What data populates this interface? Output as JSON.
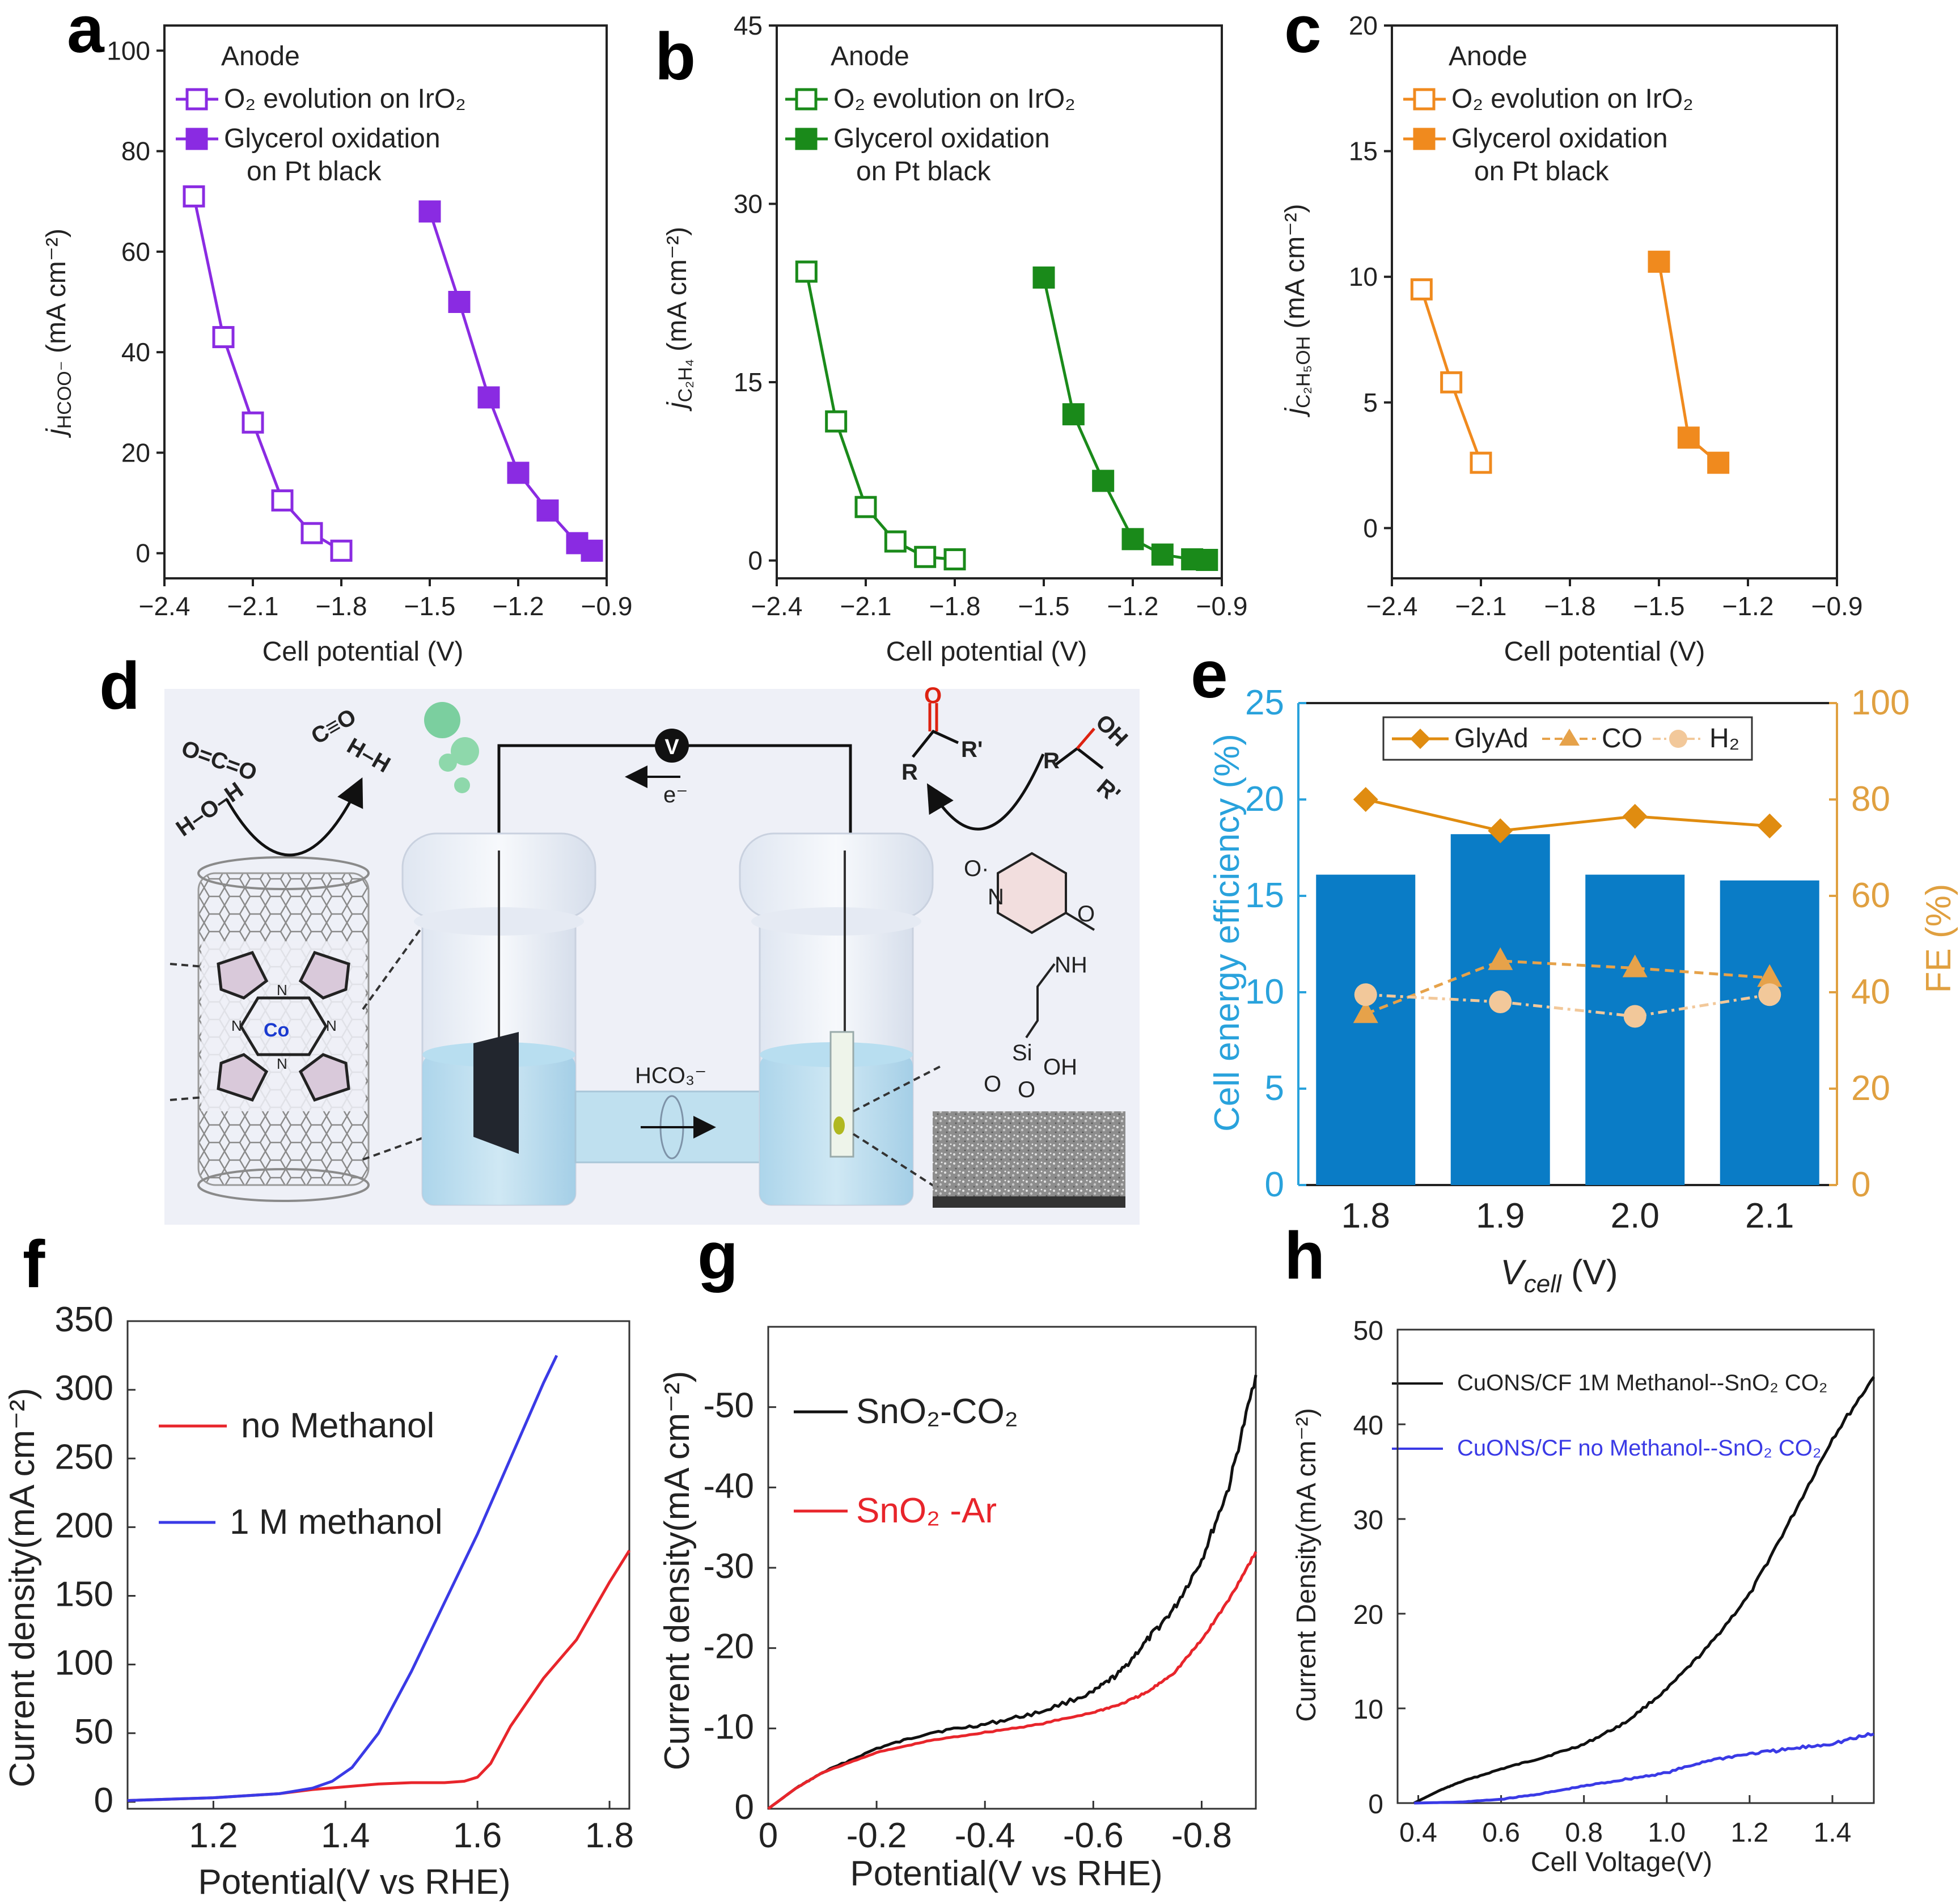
{
  "figure": {
    "panel_labels": [
      "a",
      "b",
      "c",
      "d",
      "e",
      "f",
      "g",
      "h"
    ]
  },
  "colors": {
    "purple": "#8a2be2",
    "green": "#1a8a1a",
    "orange": "#f08a1e",
    "blue_bar": "#0a7cc6",
    "fe_line": "#e08c10",
    "fe_triangle": "#e6a24a",
    "fe_circle": "#f2c89a",
    "red": "#e8252b",
    "blue": "#3a3ae6",
    "black": "#111111",
    "axis_blue": "#29a2dc",
    "axis_orange": "#e0a040"
  },
  "chart_data": [
    {
      "panel": "a",
      "type": "line",
      "xlabel": "Cell potential (V)",
      "ylabel": "j_HCOO- (mA cm^-2)",
      "xlim": [
        -2.4,
        -0.9
      ],
      "ylim": [
        -5,
        105
      ],
      "xticks": [
        -2.4,
        -2.1,
        -1.8,
        -1.5,
        -1.2,
        -0.9
      ],
      "xtick_labels": [
        "−2.4",
        "−2.1",
        "−1.8",
        "−1.5",
        "−1.2",
        "−0.9"
      ],
      "yticks": [
        0,
        20,
        40,
        60,
        80,
        100
      ],
      "ytick_labels": [
        "0",
        "20",
        "40",
        "60",
        "80",
        "100"
      ],
      "legend_title": "Anode",
      "series": [
        {
          "name": "O2 evolution on IrO2",
          "marker": "open-square",
          "x": [
            -2.3,
            -2.2,
            -2.1,
            -2.0,
            -1.9,
            -1.8
          ],
          "y": [
            71,
            43,
            26,
            10.5,
            4,
            0.5
          ]
        },
        {
          "name": "Glycerol oxidation on Pt black",
          "marker": "filled-square",
          "x": [
            -1.5,
            -1.4,
            -1.3,
            -1.2,
            -1.1,
            -1.0,
            -0.95
          ],
          "y": [
            68,
            50,
            31,
            16,
            8.5,
            2,
            0.5
          ]
        }
      ]
    },
    {
      "panel": "b",
      "type": "line",
      "xlabel": "Cell potential (V)",
      "ylabel": "j_C2H4 (mA cm^-2)",
      "xlim": [
        -2.4,
        -0.9
      ],
      "ylim": [
        -1.5,
        45
      ],
      "xticks": [
        -2.4,
        -2.1,
        -1.8,
        -1.5,
        -1.2,
        -0.9
      ],
      "xtick_labels": [
        "−2.4",
        "−2.1",
        "−1.8",
        "−1.5",
        "−1.2",
        "−0.9"
      ],
      "yticks": [
        0,
        15,
        30,
        45
      ],
      "ytick_labels": [
        "0",
        "15",
        "30",
        "45"
      ],
      "legend_title": "Anode",
      "series": [
        {
          "name": "O2 evolution on IrO2",
          "marker": "open-square",
          "x": [
            -2.3,
            -2.2,
            -2.1,
            -2.0,
            -1.9,
            -1.8
          ],
          "y": [
            24.3,
            11.7,
            4.5,
            1.6,
            0.3,
            0.1
          ]
        },
        {
          "name": "Glycerol oxidation on Pt black",
          "marker": "filled-square",
          "x": [
            -1.5,
            -1.4,
            -1.3,
            -1.2,
            -1.1,
            -1.0,
            -0.95
          ],
          "y": [
            23.8,
            12.3,
            6.7,
            1.8,
            0.5,
            0.1,
            0.05
          ]
        }
      ]
    },
    {
      "panel": "c",
      "type": "line",
      "xlabel": "Cell potential (V)",
      "ylabel": "j_C2H5OH (mA cm^-2)",
      "xlim": [
        -2.4,
        -0.9
      ],
      "ylim": [
        -2,
        20
      ],
      "xticks": [
        -2.4,
        -2.1,
        -1.8,
        -1.5,
        -1.2,
        -0.9
      ],
      "xtick_labels": [
        "−2.4",
        "−2.1",
        "−1.8",
        "−1.5",
        "−1.2",
        "−0.9"
      ],
      "yticks": [
        0,
        5,
        10,
        15,
        20
      ],
      "ytick_labels": [
        "0",
        "5",
        "10",
        "15",
        "20"
      ],
      "legend_title": "Anode",
      "series": [
        {
          "name": "O2 evolution on IrO2",
          "marker": "open-square",
          "x": [
            -2.3,
            -2.2,
            -2.1
          ],
          "y": [
            9.5,
            5.8,
            2.6
          ]
        },
        {
          "name": "Glycerol oxidation on Pt black",
          "marker": "filled-square",
          "x": [
            -1.5,
            -1.4,
            -1.3
          ],
          "y": [
            10.6,
            3.6,
            2.6
          ]
        }
      ]
    },
    {
      "panel": "e",
      "type": "bar",
      "xlabel": "V_cell (V)",
      "ylabel": "Cell energy efficiency (%)",
      "y2label": "FE (%)",
      "categories": [
        "1.8",
        "1.9",
        "2.0",
        "2.1"
      ],
      "ylim": [
        0,
        25
      ],
      "y2lim": [
        0,
        100
      ],
      "yticks": [
        0,
        5,
        10,
        15,
        20,
        25
      ],
      "y2ticks": [
        0,
        20,
        40,
        60,
        80,
        100
      ],
      "values": [
        16.1,
        18.2,
        16.1,
        15.8
      ],
      "series": [
        {
          "name": "GlyAd",
          "axis": "right",
          "marker": "diamond",
          "values": [
            80,
            73.5,
            76.5,
            74.5
          ]
        },
        {
          "name": "CO",
          "axis": "right",
          "marker": "triangle",
          "values": [
            35.5,
            46.5,
            45,
            43
          ]
        },
        {
          "name": "H2",
          "axis": "right",
          "marker": "circle",
          "values": [
            39.5,
            38,
            35,
            39.5
          ]
        }
      ]
    },
    {
      "panel": "f",
      "type": "line",
      "xlabel": "Potential(V vs RHE)",
      "ylabel": "Current density(mA cm⁻²)",
      "xlim": [
        1.07,
        1.83
      ],
      "ylim": [
        -5,
        350
      ],
      "xticks": [
        1.2,
        1.4,
        1.6,
        1.8
      ],
      "xtick_labels": [
        "1.2",
        "1.4",
        "1.6",
        "1.8"
      ],
      "yticks": [
        0,
        50,
        100,
        150,
        200,
        250,
        300,
        350
      ],
      "ytick_labels": [
        "0",
        "50",
        "100",
        "150",
        "200",
        "250",
        "300",
        "350"
      ],
      "series": [
        {
          "name": "no Methanol",
          "x": [
            1.07,
            1.2,
            1.3,
            1.35,
            1.4,
            1.45,
            1.5,
            1.55,
            1.58,
            1.6,
            1.62,
            1.65,
            1.7,
            1.75,
            1.8,
            1.83
          ],
          "y": [
            1,
            3,
            6,
            9,
            11,
            13,
            14,
            14,
            15,
            18,
            28,
            55,
            90,
            118,
            160,
            183
          ]
        },
        {
          "name": "1 M methanol",
          "x": [
            1.07,
            1.2,
            1.3,
            1.35,
            1.38,
            1.41,
            1.45,
            1.5,
            1.55,
            1.6,
            1.65,
            1.7,
            1.72
          ],
          "y": [
            1,
            3,
            6,
            10,
            15,
            25,
            50,
            95,
            145,
            195,
            250,
            305,
            325
          ]
        }
      ]
    },
    {
      "panel": "g",
      "type": "line",
      "xlabel": "Potential(V vs RHE)",
      "ylabel": "Current density(mA cm⁻²)",
      "xlim": [
        0.0,
        -0.9
      ],
      "ylim": [
        0,
        -60
      ],
      "xticks": [
        0,
        -0.2,
        -0.4,
        -0.6,
        -0.8
      ],
      "xtick_labels": [
        "0",
        "-0.2",
        "-0.4",
        "-0.6",
        "-0.8"
      ],
      "yticks": [
        0,
        -10,
        -20,
        -30,
        -40,
        -50
      ],
      "ytick_labels": [
        "0",
        "-10",
        "-20",
        "-30",
        "-40",
        "-50"
      ],
      "series": [
        {
          "name": "SnO2-CO2",
          "x": [
            0.0,
            -0.05,
            -0.1,
            -0.2,
            -0.3,
            -0.4,
            -0.5,
            -0.6,
            -0.65,
            -0.7,
            -0.75,
            -0.8,
            -0.85,
            -0.9
          ],
          "y": [
            0,
            -2.5,
            -4.5,
            -7.5,
            -9.5,
            -10.5,
            -12,
            -14.5,
            -17,
            -21,
            -25,
            -31,
            -40,
            -54
          ]
        },
        {
          "name": "SnO2 -Ar",
          "x": [
            0.0,
            -0.05,
            -0.1,
            -0.2,
            -0.3,
            -0.4,
            -0.5,
            -0.6,
            -0.65,
            -0.7,
            -0.75,
            -0.8,
            -0.85,
            -0.9
          ],
          "y": [
            0,
            -2.5,
            -4.5,
            -7,
            -8.5,
            -9.5,
            -10.5,
            -12,
            -13,
            -14.5,
            -17,
            -21,
            -26,
            -32
          ]
        }
      ]
    },
    {
      "panel": "h",
      "type": "line",
      "xlabel": "Cell Voltage(V)",
      "ylabel": "Current Density(mA cm⁻²)",
      "xlim": [
        0.35,
        1.5
      ],
      "ylim": [
        0,
        50
      ],
      "xticks": [
        0.4,
        0.6,
        0.8,
        1.0,
        1.2,
        1.4
      ],
      "xtick_labels": [
        "0.4",
        "0.6",
        "0.8",
        "1.0",
        "1.2",
        "1.4"
      ],
      "yticks": [
        0,
        10,
        20,
        30,
        40,
        50
      ],
      "ytick_labels": [
        "0",
        "10",
        "20",
        "30",
        "40",
        "50"
      ],
      "series": [
        {
          "name": "CuONS/CF 1M Methanol--SnO2 CO2",
          "x": [
            0.39,
            0.45,
            0.5,
            0.6,
            0.7,
            0.8,
            0.9,
            1.0,
            1.1,
            1.2,
            1.3,
            1.4,
            1.5
          ],
          "y": [
            0,
            1.3,
            2.2,
            3.6,
            4.8,
            6.2,
            8.5,
            12,
            16.5,
            22,
            30,
            38.5,
            45
          ]
        },
        {
          "name": "CuONS/CF no Methanol--SnO2 CO2",
          "x": [
            0.39,
            0.5,
            0.6,
            0.7,
            0.8,
            0.9,
            1.0,
            1.1,
            1.2,
            1.3,
            1.4,
            1.5
          ],
          "y": [
            0,
            0.1,
            0.4,
            1,
            1.8,
            2.5,
            3.2,
            4.5,
            5.2,
            5.7,
            6.3,
            7.3
          ]
        }
      ]
    }
  ],
  "panel_a": {
    "legend_title": "Anode",
    "legend_o2": "O₂ evolution on IrO₂",
    "legend_gly1": "Glycerol oxidation",
    "legend_gly2": "on Pt black",
    "ylabel_main": "j",
    "ylabel_sub": "HCOO⁻",
    "ylabel_unit": " (mA cm⁻²)",
    "xlabel": "Cell potential (V)"
  },
  "panel_b": {
    "legend_title": "Anode",
    "legend_o2": "O₂ evolution on IrO₂",
    "legend_gly1": "Glycerol oxidation",
    "legend_gly2": "on Pt black",
    "ylabel_main": "j",
    "ylabel_sub": "C₂H₄",
    "ylabel_unit": " (mA cm⁻²)",
    "xlabel": "Cell potential (V)"
  },
  "panel_c": {
    "legend_title": "Anode",
    "legend_o2": "O₂ evolution on IrO₂",
    "legend_gly1": "Glycerol oxidation",
    "legend_gly2": "on Pt black",
    "ylabel_main": "j",
    "ylabel_sub": "C₂H₅OH",
    "ylabel_unit": " (mA cm⁻²)",
    "xlabel": "Cell potential (V)"
  },
  "panel_d": {
    "voltmeter": "V",
    "electron": "e⁻",
    "bicarbonate": "HCO₃⁻",
    "mol_co2": "O=C=O",
    "mol_water": "H–O–H",
    "mol_co": "C≡O",
    "mol_h2": "H–H",
    "cobalt": "Co",
    "nitrogen": "N",
    "r_label": "R",
    "r_prime_label": "R'",
    "oh_label": "OH",
    "carbonyl_o": "O",
    "tempo_o": "O·",
    "tempo_n": "N",
    "amide_o": "O",
    "nh_label": "NH",
    "si_label": "Si",
    "si_oh": "OH",
    "si_o": "O"
  },
  "panel_e": {
    "ylabel": "Cell energy efficiency (%)",
    "y2label": "FE (%)",
    "xlabel_main": "V",
    "xlabel_sub": "cell",
    "xlabel_unit": " (V)",
    "legend": [
      "GlyAd",
      "CO",
      "H₂"
    ]
  },
  "panel_f": {
    "ylabel": "Current density(mA cm⁻²)",
    "xlabel": "Potential(V vs RHE)",
    "legend": [
      "no Methanol",
      "1 M methanol"
    ]
  },
  "panel_g": {
    "ylabel": "Current density(mA cm⁻²)",
    "xlabel": "Potential(V vs RHE)",
    "legend": [
      "SnO₂-CO₂",
      "SnO₂ -Ar"
    ]
  },
  "panel_h": {
    "ylabel": "Current Density(mA cm⁻²)",
    "xlabel": "Cell Voltage(V)",
    "legend": [
      "CuONS/CF 1M Methanol--SnO₂ CO₂",
      "CuONS/CF no Methanol--SnO₂ CO₂"
    ]
  }
}
